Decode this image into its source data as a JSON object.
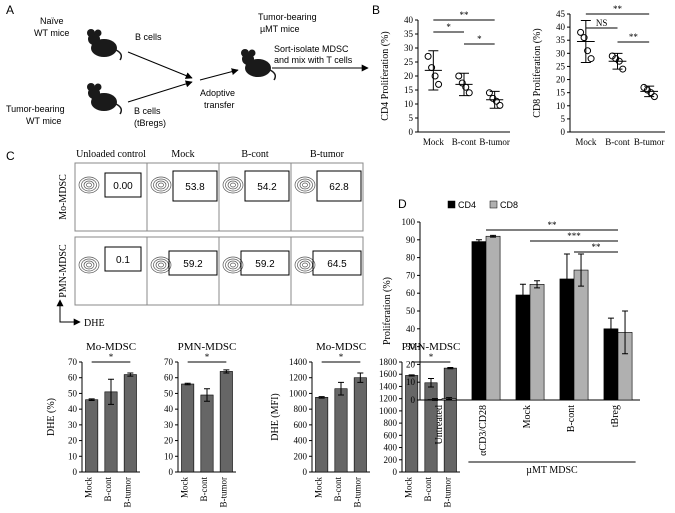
{
  "panel_labels": [
    "A",
    "B",
    "C",
    "D"
  ],
  "schematic": {
    "donor_naive": [
      "Naïve",
      "WT mice"
    ],
    "cells_naive": [
      "B cells"
    ],
    "donor_tumor": [
      "Tumor-bearing",
      "WT mice"
    ],
    "cells_tumor": [
      "B cells",
      "(tBregs)"
    ],
    "transfer": [
      "Adoptive",
      "transfer"
    ],
    "recipient": [
      "Tumor-bearing",
      "µMT mice"
    ],
    "assay": [
      "Sort-isolate MDSC",
      "and mix with T cells"
    ]
  },
  "flow": {
    "columns": [
      "Unloaded control",
      "Mock",
      "B-cont",
      "B-tumor"
    ],
    "rows": [
      {
        "name": "Mo-MDSC",
        "values": [
          "0.00",
          "53.8",
          "54.2",
          "62.8"
        ]
      },
      {
        "name": "PMN-MDSC",
        "values": [
          "0.1",
          "59.2",
          "59.2",
          "64.5"
        ]
      }
    ],
    "axis": "DHE"
  },
  "chart_data": [
    {
      "type": "dot",
      "y_label": "CD4 Proliferation (%)",
      "categories": [
        "Mock",
        "B-cont",
        "B-tumor"
      ],
      "values": [
        22,
        17,
        11.5
      ],
      "errors": [
        7,
        4,
        3
      ],
      "points": [
        [
          27,
          23,
          20,
          17
        ],
        [
          20,
          17.5,
          16,
          14
        ],
        [
          14,
          12,
          11,
          9.5
        ]
      ],
      "color": "#000000",
      "ylim": [
        0,
        40
      ],
      "yticks": [
        0,
        5,
        10,
        15,
        20,
        25,
        30,
        35,
        40
      ],
      "annotations": [
        {
          "label": "**",
          "between": [
            0,
            2
          ]
        },
        {
          "label": "*",
          "between": [
            0,
            1
          ]
        },
        {
          "label": "*",
          "between": [
            1,
            2
          ]
        }
      ]
    },
    {
      "type": "dot",
      "y_label": "CD8 Proliferation (%)",
      "categories": [
        "Mock",
        "B-cont",
        "B-tumor"
      ],
      "values": [
        34.5,
        27,
        15.5
      ],
      "errors": [
        8,
        3,
        2
      ],
      "points": [
        [
          38,
          36,
          31,
          28
        ],
        [
          29,
          28,
          27,
          24
        ],
        [
          17,
          16,
          15,
          13.5
        ]
      ],
      "color": "#000000",
      "ylim": [
        0,
        45
      ],
      "yticks": [
        0,
        5,
        10,
        15,
        20,
        25,
        30,
        35,
        40,
        45
      ],
      "annotations": [
        {
          "label": "**",
          "between": [
            0,
            2
          ]
        },
        {
          "label": "NS",
          "between": [
            0,
            1
          ]
        },
        {
          "label": "**",
          "between": [
            1,
            2
          ]
        }
      ]
    },
    {
      "type": "bar",
      "title": "Mo-MDSC",
      "y_label": "DHE  (%)",
      "categories": [
        "Mock",
        "B-cont",
        "B-tumor"
      ],
      "series": [
        {
          "color": "#666666",
          "values": [
            46,
            51,
            62
          ],
          "errors": [
            0.5,
            8,
            1
          ]
        }
      ],
      "ylim": [
        0,
        70
      ],
      "yticks": [
        0,
        10,
        20,
        30,
        40,
        50,
        60,
        70
      ],
      "annotations": [
        {
          "label": "*",
          "between": [
            0,
            2
          ]
        }
      ]
    },
    {
      "type": "bar",
      "title": "PMN-MDSC",
      "categories": [
        "Mock",
        "B-cont",
        "B-tumor"
      ],
      "series": [
        {
          "color": "#666666",
          "values": [
            56,
            49,
            64
          ],
          "errors": [
            0.5,
            4,
            1
          ]
        }
      ],
      "ylim": [
        0,
        70
      ],
      "yticks": [
        0,
        10,
        20,
        30,
        40,
        50,
        60,
        70
      ],
      "annotations": [
        {
          "label": "*",
          "between": [
            0,
            2
          ]
        }
      ]
    },
    {
      "type": "bar",
      "title": "Mo-MDSC",
      "y_label": "DHE  (MFI)",
      "categories": [
        "Mock",
        "B-cont",
        "B-tumor"
      ],
      "series": [
        {
          "color": "#666666",
          "values": [
            950,
            1060,
            1200
          ],
          "errors": [
            10,
            80,
            60
          ]
        }
      ],
      "ylim": [
        0,
        1400
      ],
      "yticks": [
        0,
        200,
        400,
        600,
        800,
        1000,
        1200,
        1400
      ],
      "annotations": [
        {
          "label": "*",
          "between": [
            0,
            2
          ]
        }
      ]
    },
    {
      "type": "bar",
      "title": "PMN-MDSC",
      "categories": [
        "Mock",
        "B-cont",
        "B-tumor"
      ],
      "series": [
        {
          "color": "#666666",
          "values": [
            1580,
            1460,
            1700
          ],
          "errors": [
            10,
            70,
            10
          ]
        }
      ],
      "ylim": [
        0,
        1800
      ],
      "yticks": [
        0,
        200,
        400,
        600,
        800,
        1000,
        1200,
        1400,
        1600,
        1800
      ],
      "annotations": [
        {
          "label": "*",
          "between": [
            0,
            2
          ]
        }
      ]
    },
    {
      "type": "bar",
      "y_label": "Proliferation (%)",
      "categories": [
        "Untreated",
        "αCD3/CD28",
        "Mock",
        "B-cont",
        "tBreg"
      ],
      "series": [
        {
          "name": "CD4",
          "color": "#000000",
          "values": [
            0.3,
            89,
            59,
            68,
            40
          ],
          "errors": [
            0.5,
            1,
            6,
            14,
            6
          ]
        },
        {
          "name": "CD8",
          "color": "#b0b0b0",
          "values": [
            0.8,
            92,
            65,
            73,
            38
          ],
          "errors": [
            0.5,
            0.5,
            2,
            9,
            12
          ]
        }
      ],
      "ylim": [
        0,
        100
      ],
      "yticks": [
        0,
        10,
        20,
        30,
        40,
        50,
        60,
        70,
        80,
        90,
        100
      ],
      "annotations": [
        {
          "label": "**",
          "between": [
            1,
            4
          ]
        },
        {
          "label": "***",
          "between": [
            2,
            4
          ]
        },
        {
          "label": "**",
          "between": [
            3,
            4
          ]
        }
      ],
      "group_label": "µMT MDSC",
      "group_span": [
        1,
        4
      ]
    }
  ]
}
